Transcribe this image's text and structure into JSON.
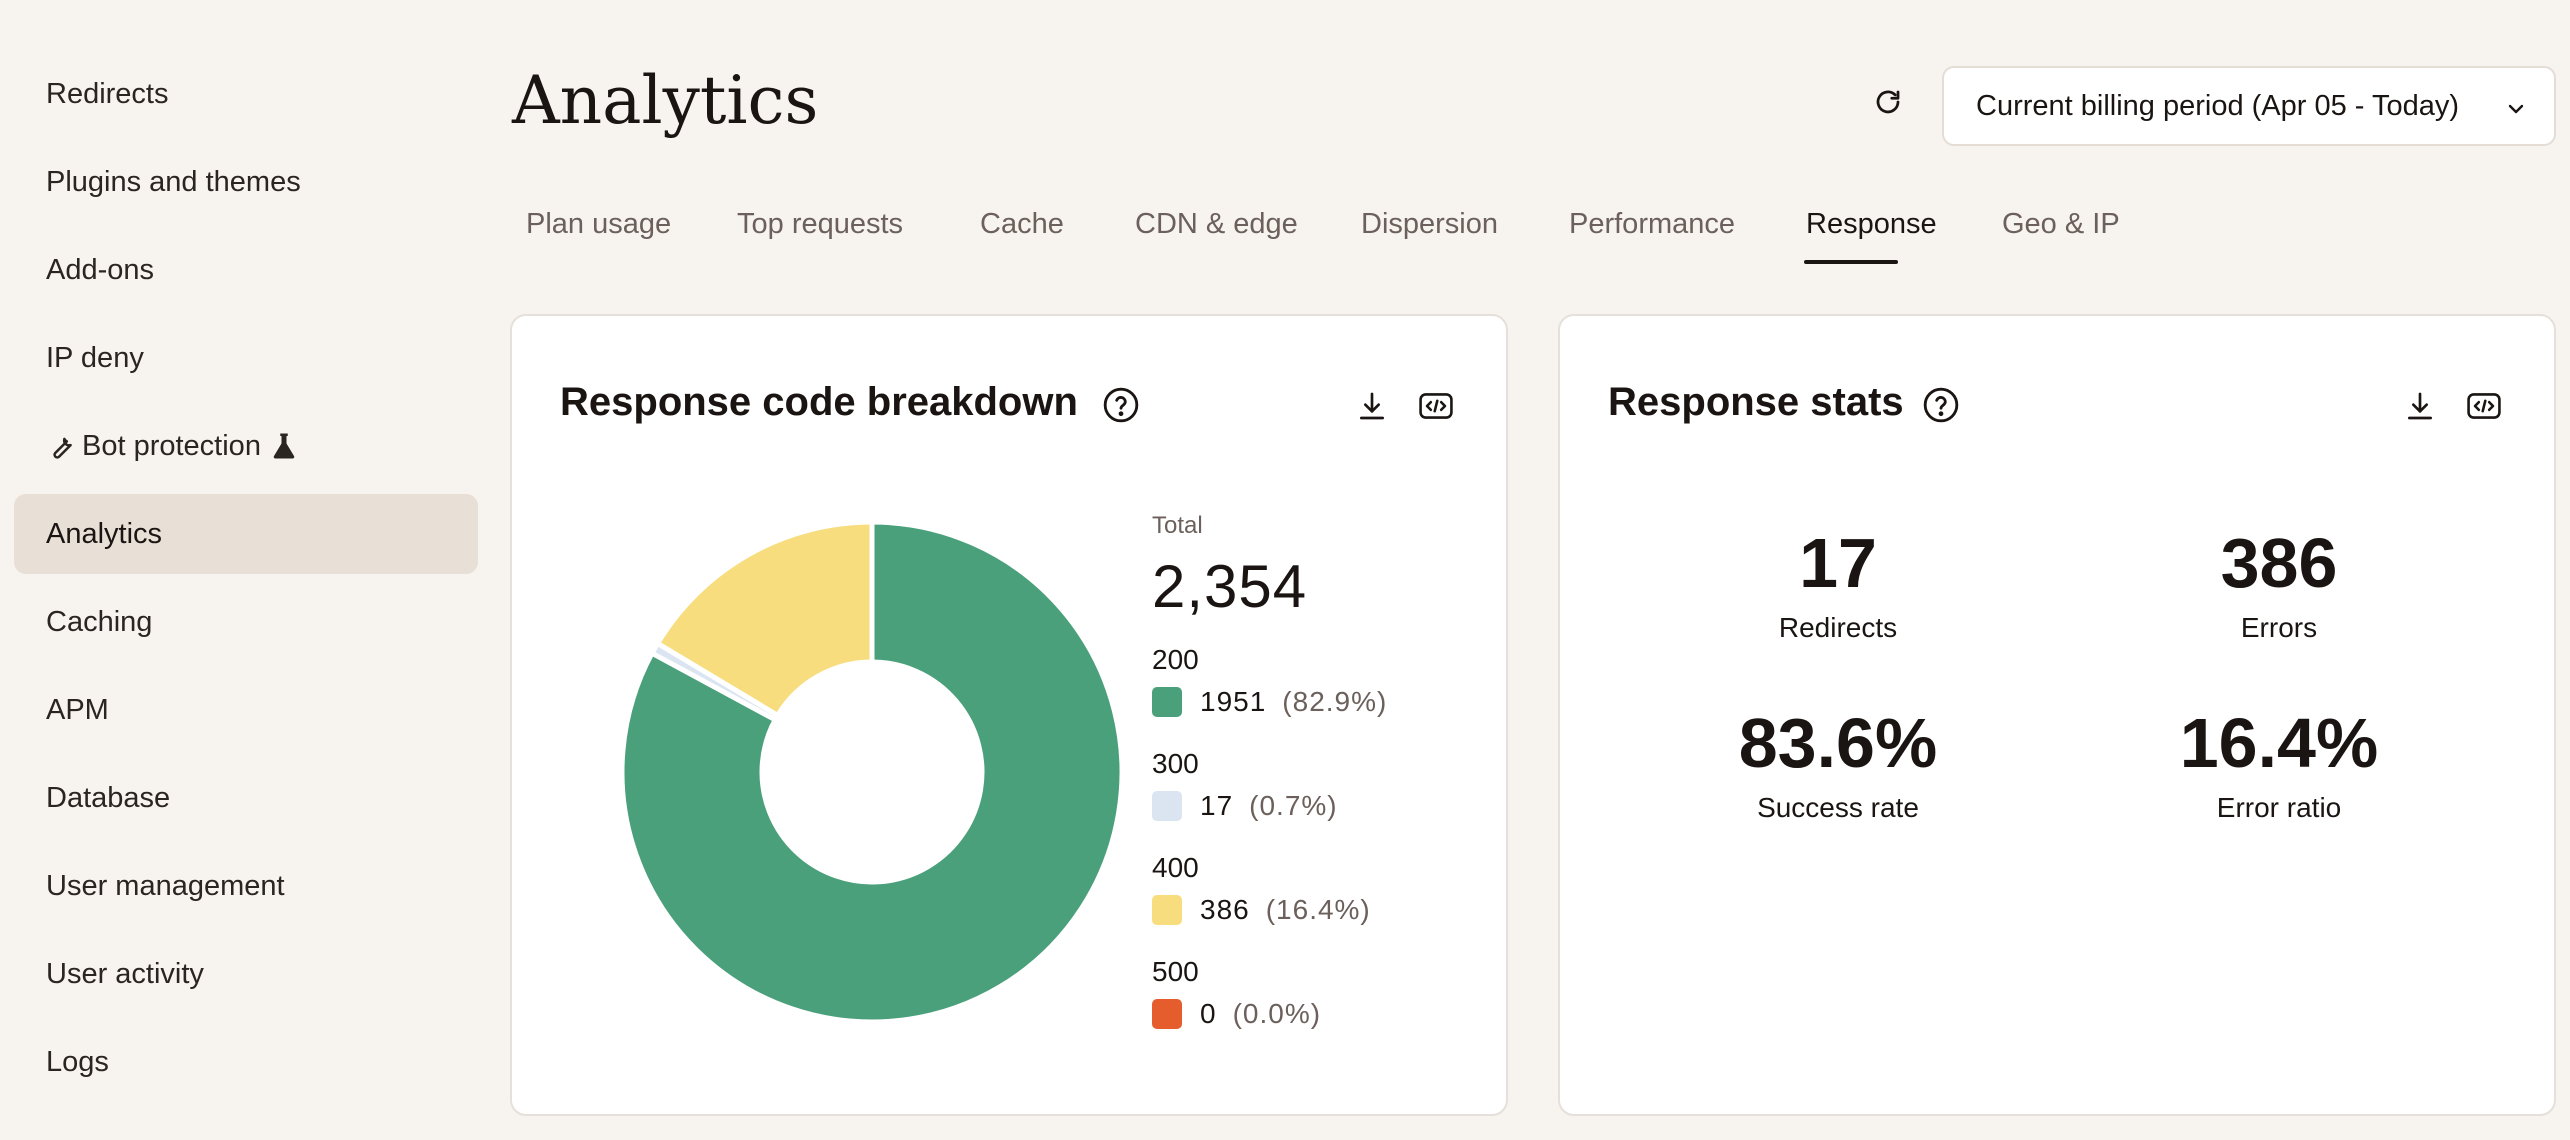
{
  "sidebar": {
    "items": [
      {
        "label": "Redirects"
      },
      {
        "label": "Plugins and themes"
      },
      {
        "label": "Add-ons"
      },
      {
        "label": "IP deny"
      },
      {
        "label": "Bot protection"
      },
      {
        "label": "Analytics",
        "active": true
      },
      {
        "label": "Caching"
      },
      {
        "label": "APM"
      },
      {
        "label": "Database"
      },
      {
        "label": "User management"
      },
      {
        "label": "User activity"
      },
      {
        "label": "Logs"
      }
    ]
  },
  "header": {
    "title": "Analytics",
    "period": "Current billing period (Apr 05 - Today)"
  },
  "tabs": [
    {
      "label": "Plan usage"
    },
    {
      "label": "Top requests"
    },
    {
      "label": "Cache"
    },
    {
      "label": "CDN & edge"
    },
    {
      "label": "Dispersion"
    },
    {
      "label": "Performance"
    },
    {
      "label": "Response",
      "active": true
    },
    {
      "label": "Geo & IP"
    }
  ],
  "breakdown": {
    "title": "Response code breakdown",
    "total_label": "Total",
    "total": "2,354",
    "items": [
      {
        "code": "200",
        "count": "1951",
        "pct": "(82.9%)",
        "color": "#4ba07c"
      },
      {
        "code": "300",
        "count": "17",
        "pct": "(0.7%)",
        "color": "#dbe5f2"
      },
      {
        "code": "400",
        "count": "386",
        "pct": "(16.4%)",
        "color": "#f7dd7d"
      },
      {
        "code": "500",
        "count": "0",
        "pct": "(0.0%)",
        "color": "#e55c2d"
      }
    ]
  },
  "stats": {
    "title": "Response stats",
    "items": [
      {
        "value": "17",
        "label": "Redirects"
      },
      {
        "value": "386",
        "label": "Errors"
      },
      {
        "value": "83.6%",
        "label": "Success rate"
      },
      {
        "value": "16.4%",
        "label": "Error ratio"
      }
    ]
  },
  "chart_data": {
    "type": "pie",
    "categories": [
      "200",
      "300",
      "400",
      "500"
    ],
    "values": [
      1951,
      17,
      386,
      0
    ],
    "colors": [
      "#4ba07c",
      "#dbe5f2",
      "#f7dd7d",
      "#e55c2d"
    ],
    "title": "Response code breakdown",
    "donut": true
  }
}
